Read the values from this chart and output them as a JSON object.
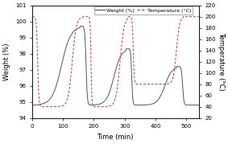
{
  "xlabel": "Time (min)",
  "ylabel_left": "Weight (%)",
  "ylabel_right": "Temperature (°C)",
  "xlim": [
    0,
    540
  ],
  "ylim_left": [
    94,
    101
  ],
  "ylim_right": [
    20,
    220
  ],
  "yticks_left": [
    94,
    95,
    96,
    97,
    98,
    99,
    100,
    101
  ],
  "yticks_right": [
    20,
    40,
    60,
    80,
    100,
    120,
    140,
    160,
    180,
    200,
    220
  ],
  "xticks": [
    0,
    100,
    200,
    300,
    400,
    500
  ],
  "weight_color": "#555555",
  "temp_color": "#cc3333",
  "legend_labels": [
    "Weight (%)",
    "Temperature (°C)"
  ],
  "weight_base": 94.8,
  "weight_peaks": [
    99.7,
    98.3,
    97.2
  ],
  "temp_high": 200,
  "temp_lows": [
    40,
    40,
    80
  ],
  "figsize": [
    2.83,
    1.79
  ],
  "dpi": 100,
  "legend_fontsize": 4.5,
  "axis_fontsize": 6,
  "tick_fontsize": 5
}
